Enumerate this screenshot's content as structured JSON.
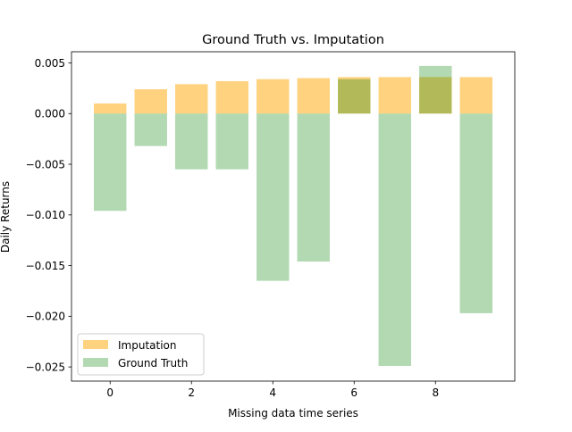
{
  "chart_data": {
    "type": "bar",
    "title": "Ground Truth vs. Imputation",
    "xlabel": "Missing data time series",
    "ylabel": "Daily Returns",
    "x": [
      0,
      1,
      2,
      3,
      4,
      5,
      6,
      7,
      8,
      9
    ],
    "xticks": [
      0,
      2,
      4,
      6,
      8
    ],
    "xtick_labels": [
      "0",
      "2",
      "4",
      "6",
      "8"
    ],
    "xlim": [
      -0.95,
      9.95
    ],
    "ylim": [
      -0.0264,
      0.0061
    ],
    "yticks": [
      0.005,
      0.0,
      -0.005,
      -0.01,
      -0.015,
      -0.02,
      -0.025
    ],
    "ytick_labels": [
      "0.005",
      "0.000",
      "−0.005",
      "−0.010",
      "−0.015",
      "−0.020",
      "−0.025"
    ],
    "series": [
      {
        "name": "Imputation",
        "color": "#FFA500",
        "opacity": 0.5,
        "values": [
          0.001,
          0.0024,
          0.0029,
          0.0032,
          0.0034,
          0.0035,
          0.0036,
          0.0036,
          0.0036,
          0.0036
        ]
      },
      {
        "name": "Ground Truth",
        "color": "#008000",
        "opacity": 0.3,
        "values": [
          -0.0096,
          -0.0032,
          -0.0055,
          -0.0055,
          -0.0165,
          -0.0146,
          0.0034,
          -0.0249,
          0.0047,
          -0.0197
        ]
      }
    ],
    "legend": "lower-left",
    "grid": false
  }
}
